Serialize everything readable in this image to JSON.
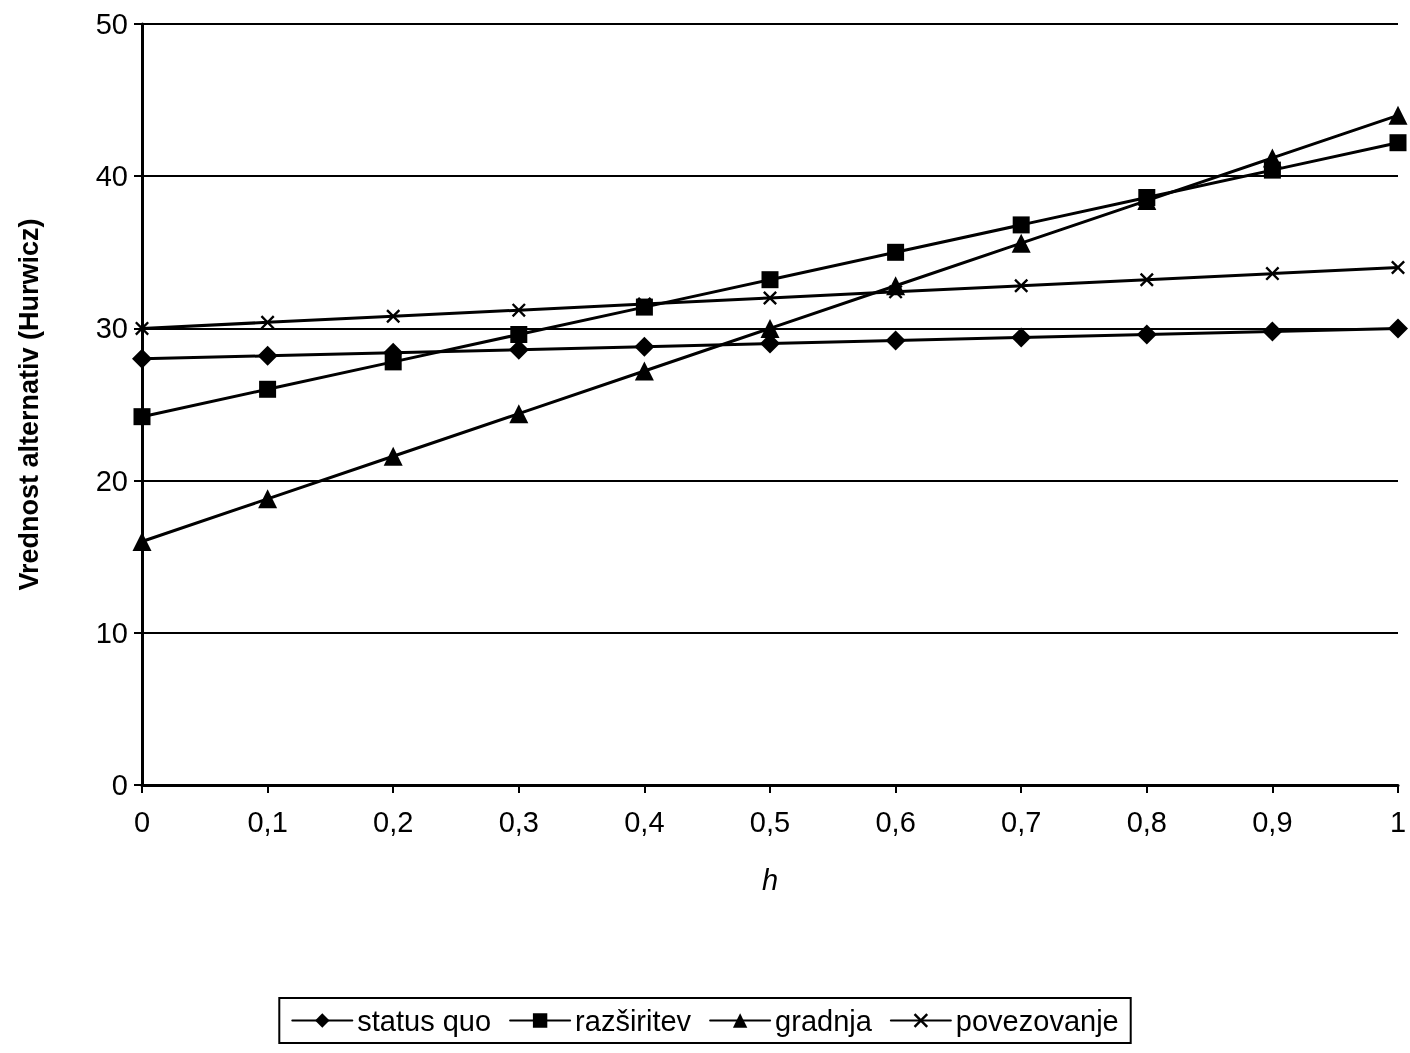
{
  "chart_data": {
    "type": "line",
    "xlabel": "h",
    "ylabel": "Vrednost alternativ (Hurwicz)",
    "x": [
      0,
      0.1,
      0.2,
      0.3,
      0.4,
      0.5,
      0.6,
      0.7,
      0.8,
      0.9,
      1
    ],
    "series": [
      {
        "name": "status quo",
        "color": "#000000",
        "marker": "diamond",
        "values": [
          28,
          28.2,
          28.4,
          28.6,
          28.8,
          29,
          29.2,
          29.4,
          29.6,
          29.8,
          30
        ]
      },
      {
        "name": "razširitev",
        "color": "#000000",
        "marker": "square",
        "values": [
          24.2,
          26,
          27.8,
          29.6,
          31.4,
          33.2,
          35,
          36.8,
          38.6,
          40.4,
          42.2
        ]
      },
      {
        "name": "gradnja",
        "color": "#000000",
        "marker": "triangle",
        "values": [
          16,
          18.8,
          21.6,
          24.4,
          27.2,
          30,
          32.8,
          35.6,
          38.4,
          41.2,
          44
        ]
      },
      {
        "name": "povezovanje",
        "color": "#000000",
        "marker": "cross",
        "values": [
          30,
          30.4,
          30.8,
          31.2,
          31.6,
          32,
          32.4,
          32.8,
          33.2,
          33.6,
          34
        ]
      }
    ],
    "xlim": [
      0,
      1
    ],
    "xticks": [
      0,
      {
        "value": 0.1,
        "label": "0,1"
      },
      {
        "value": 0.2,
        "label": "0,2"
      },
      {
        "value": 0.3,
        "label": "0,3"
      },
      {
        "value": 0.4,
        "label": "0,4"
      },
      {
        "value": 0.5,
        "label": "0,5"
      },
      {
        "value": 0.6,
        "label": "0,6"
      },
      {
        "value": 0.7,
        "label": "0,7"
      },
      {
        "value": 0.8,
        "label": "0,8"
      },
      {
        "value": 0.9,
        "label": "0,9"
      },
      1
    ],
    "ylim": [
      0,
      50
    ],
    "yticks": [
      0,
      10,
      20,
      30,
      40,
      50
    ],
    "grid": "y",
    "legend": "bottom",
    "line_style": "solid"
  }
}
